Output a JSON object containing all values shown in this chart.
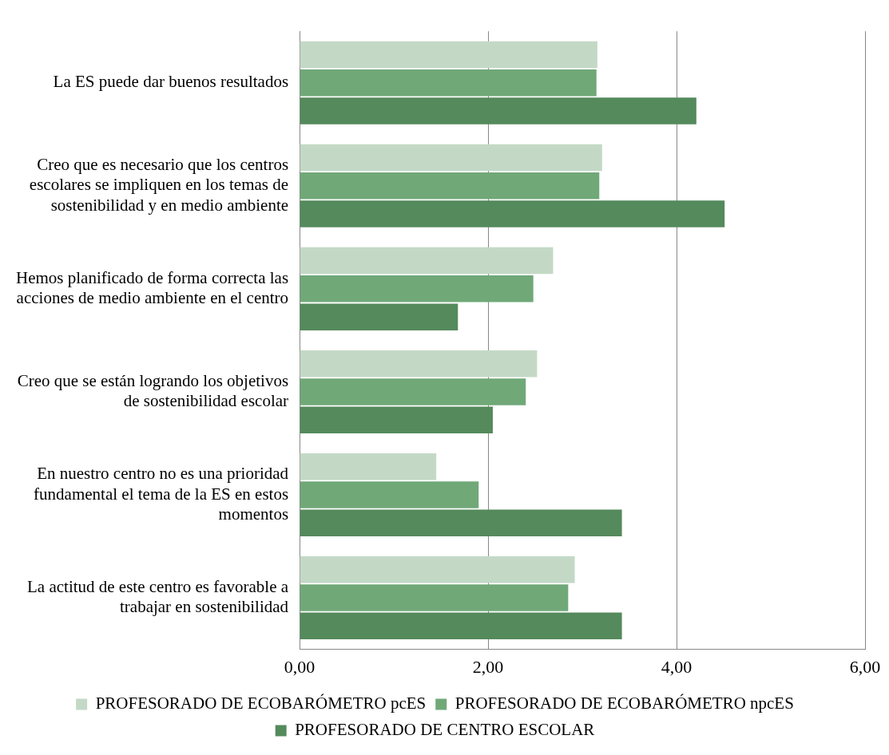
{
  "chart_data": {
    "type": "bar",
    "orientation": "horizontal",
    "categories": [
      "La ES puede dar buenos resultados",
      "Creo que es necesario que los centros escolares se impliquen en los temas de sostenibilidad y en medio ambiente",
      "Hemos planificado de forma correcta las acciones de medio ambiente en el centro",
      "Creo que se están logrando los objetivos de sostenibilidad escolar",
      "En nuestro centro no es una prioridad fundamental el tema de la ES en estos momentos",
      "La actitud de este centro es favorable a trabajar en sostenibilidad"
    ],
    "series": [
      {
        "name": "PROFESORADO DE ECOBARÓMETRO pcES",
        "color": "#c3d9c6",
        "values": [
          3.16,
          3.21,
          2.69,
          2.52,
          1.45,
          2.92
        ]
      },
      {
        "name": "PROFESORADO DE ECOBARÓMETRO npcES",
        "color": "#70a878",
        "values": [
          3.15,
          3.18,
          2.48,
          2.4,
          1.9,
          2.85
        ]
      },
      {
        "name": "PROFESORADO DE CENTRO ESCOLAR",
        "color": "#548a5c",
        "values": [
          4.21,
          4.51,
          1.68,
          2.05,
          3.42,
          3.42
        ]
      }
    ],
    "xlim": [
      0,
      6
    ],
    "xticks": [
      {
        "value": 0,
        "label": "0,00"
      },
      {
        "value": 2,
        "label": "2,00"
      },
      {
        "value": 4,
        "label": "4,00"
      },
      {
        "value": 6,
        "label": "6,00"
      }
    ],
    "grid": "x",
    "legend": "bottom"
  }
}
